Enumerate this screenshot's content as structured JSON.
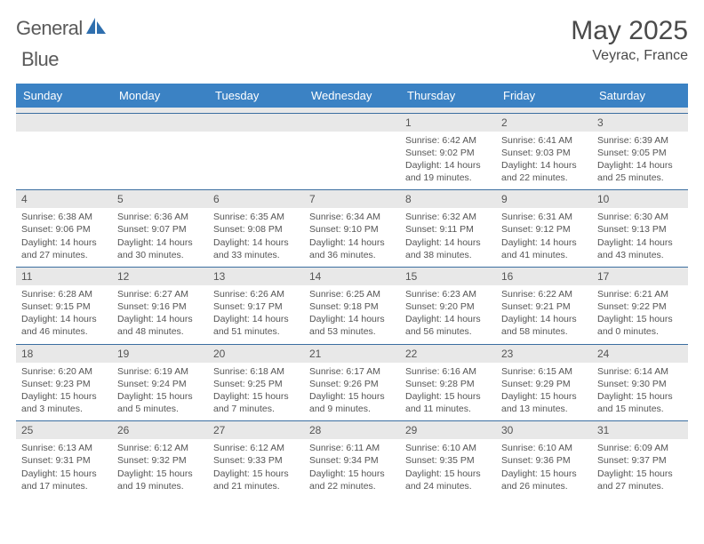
{
  "brand": {
    "name_part1": "General",
    "name_part2": "Blue"
  },
  "colors": {
    "header_bg": "#3b82c4",
    "header_text": "#ffffff",
    "daynum_bg": "#e8e8e8",
    "row_border": "#3b6ea0",
    "text": "#555555",
    "logo_gray": "#5a5a5a",
    "logo_blue": "#2f6fae"
  },
  "title": "May 2025",
  "location": "Veyrac, France",
  "weekdays": [
    "Sunday",
    "Monday",
    "Tuesday",
    "Wednesday",
    "Thursday",
    "Friday",
    "Saturday"
  ],
  "layout": {
    "first_weekday_index": 4,
    "days_in_month": 31
  },
  "days": {
    "1": {
      "sunrise": "6:42 AM",
      "sunset": "9:02 PM",
      "daylight": "14 hours and 19 minutes."
    },
    "2": {
      "sunrise": "6:41 AM",
      "sunset": "9:03 PM",
      "daylight": "14 hours and 22 minutes."
    },
    "3": {
      "sunrise": "6:39 AM",
      "sunset": "9:05 PM",
      "daylight": "14 hours and 25 minutes."
    },
    "4": {
      "sunrise": "6:38 AM",
      "sunset": "9:06 PM",
      "daylight": "14 hours and 27 minutes."
    },
    "5": {
      "sunrise": "6:36 AM",
      "sunset": "9:07 PM",
      "daylight": "14 hours and 30 minutes."
    },
    "6": {
      "sunrise": "6:35 AM",
      "sunset": "9:08 PM",
      "daylight": "14 hours and 33 minutes."
    },
    "7": {
      "sunrise": "6:34 AM",
      "sunset": "9:10 PM",
      "daylight": "14 hours and 36 minutes."
    },
    "8": {
      "sunrise": "6:32 AM",
      "sunset": "9:11 PM",
      "daylight": "14 hours and 38 minutes."
    },
    "9": {
      "sunrise": "6:31 AM",
      "sunset": "9:12 PM",
      "daylight": "14 hours and 41 minutes."
    },
    "10": {
      "sunrise": "6:30 AM",
      "sunset": "9:13 PM",
      "daylight": "14 hours and 43 minutes."
    },
    "11": {
      "sunrise": "6:28 AM",
      "sunset": "9:15 PM",
      "daylight": "14 hours and 46 minutes."
    },
    "12": {
      "sunrise": "6:27 AM",
      "sunset": "9:16 PM",
      "daylight": "14 hours and 48 minutes."
    },
    "13": {
      "sunrise": "6:26 AM",
      "sunset": "9:17 PM",
      "daylight": "14 hours and 51 minutes."
    },
    "14": {
      "sunrise": "6:25 AM",
      "sunset": "9:18 PM",
      "daylight": "14 hours and 53 minutes."
    },
    "15": {
      "sunrise": "6:23 AM",
      "sunset": "9:20 PM",
      "daylight": "14 hours and 56 minutes."
    },
    "16": {
      "sunrise": "6:22 AM",
      "sunset": "9:21 PM",
      "daylight": "14 hours and 58 minutes."
    },
    "17": {
      "sunrise": "6:21 AM",
      "sunset": "9:22 PM",
      "daylight": "15 hours and 0 minutes."
    },
    "18": {
      "sunrise": "6:20 AM",
      "sunset": "9:23 PM",
      "daylight": "15 hours and 3 minutes."
    },
    "19": {
      "sunrise": "6:19 AM",
      "sunset": "9:24 PM",
      "daylight": "15 hours and 5 minutes."
    },
    "20": {
      "sunrise": "6:18 AM",
      "sunset": "9:25 PM",
      "daylight": "15 hours and 7 minutes."
    },
    "21": {
      "sunrise": "6:17 AM",
      "sunset": "9:26 PM",
      "daylight": "15 hours and 9 minutes."
    },
    "22": {
      "sunrise": "6:16 AM",
      "sunset": "9:28 PM",
      "daylight": "15 hours and 11 minutes."
    },
    "23": {
      "sunrise": "6:15 AM",
      "sunset": "9:29 PM",
      "daylight": "15 hours and 13 minutes."
    },
    "24": {
      "sunrise": "6:14 AM",
      "sunset": "9:30 PM",
      "daylight": "15 hours and 15 minutes."
    },
    "25": {
      "sunrise": "6:13 AM",
      "sunset": "9:31 PM",
      "daylight": "15 hours and 17 minutes."
    },
    "26": {
      "sunrise": "6:12 AM",
      "sunset": "9:32 PM",
      "daylight": "15 hours and 19 minutes."
    },
    "27": {
      "sunrise": "6:12 AM",
      "sunset": "9:33 PM",
      "daylight": "15 hours and 21 minutes."
    },
    "28": {
      "sunrise": "6:11 AM",
      "sunset": "9:34 PM",
      "daylight": "15 hours and 22 minutes."
    },
    "29": {
      "sunrise": "6:10 AM",
      "sunset": "9:35 PM",
      "daylight": "15 hours and 24 minutes."
    },
    "30": {
      "sunrise": "6:10 AM",
      "sunset": "9:36 PM",
      "daylight": "15 hours and 26 minutes."
    },
    "31": {
      "sunrise": "6:09 AM",
      "sunset": "9:37 PM",
      "daylight": "15 hours and 27 minutes."
    }
  },
  "labels": {
    "sunrise": "Sunrise: ",
    "sunset": "Sunset: ",
    "daylight": "Daylight: "
  }
}
